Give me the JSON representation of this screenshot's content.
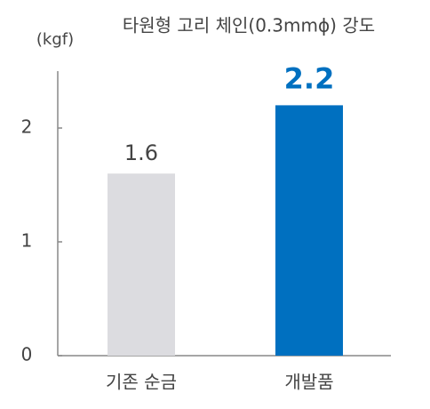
{
  "chart_data": {
    "type": "bar",
    "title": "타원형 고리 체인(0.3mmϕ) 강도",
    "y_label": "(kgf)",
    "categories": [
      "기존 순금",
      "개발품"
    ],
    "values": [
      1.6,
      2.2
    ],
    "colors": [
      "#dcdce0",
      "#0070c0"
    ],
    "ylim": [
      0,
      2.5
    ],
    "yticks": [
      0,
      1,
      2
    ],
    "grid": false
  }
}
